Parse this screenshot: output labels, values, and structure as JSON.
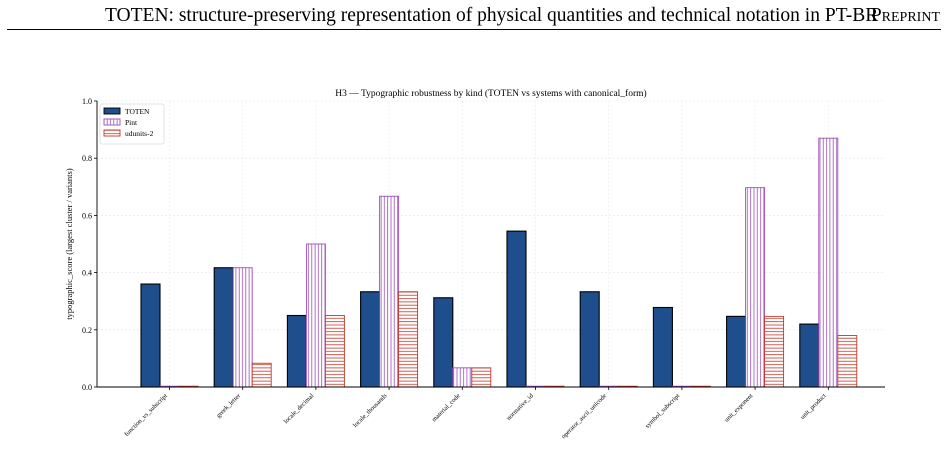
{
  "header": {
    "title": "TOTEN: structure-preserving representation of physical quantities and technical notation in PT-BR",
    "tag": "Preprint"
  },
  "chart_data": {
    "type": "bar",
    "title": "H3 — Typographic robustness by kind (TOTEN vs systems with canonical_form)",
    "xlabel": "",
    "ylabel": "typographic_score (largest cluster / variants)",
    "ylim": [
      0,
      1.0
    ],
    "yticks": [
      "0.0",
      "0.2",
      "0.4",
      "0.6",
      "0.8",
      "1.0"
    ],
    "grid": true,
    "legend_position": "top-left",
    "categories": [
      "function_vs_subscript",
      "greek_letter",
      "locale_decimal",
      "locale_thousands",
      "material_code",
      "normative_id",
      "operator_ascii_unicode",
      "symbol_subscript",
      "unit_exponent",
      "unit_product"
    ],
    "series": [
      {
        "name": "TOTEN",
        "color": "#1f4e8c",
        "fill": "solid",
        "values": [
          0.36,
          0.417,
          0.25,
          0.333,
          0.312,
          0.545,
          0.333,
          0.278,
          0.247,
          0.22
        ]
      },
      {
        "name": "Pint",
        "color": "#9b4fb5",
        "fill": "vertical-hatch",
        "values": [
          0.0,
          0.417,
          0.5,
          0.667,
          0.067,
          0.0,
          0.0,
          0.0,
          0.697,
          0.87
        ]
      },
      {
        "name": "udunits-2",
        "color": "#c0392b",
        "fill": "horizontal-hatch",
        "values": [
          0.0,
          0.083,
          0.25,
          0.333,
          0.067,
          0.0,
          0.0,
          0.0,
          0.247,
          0.18
        ]
      }
    ]
  }
}
